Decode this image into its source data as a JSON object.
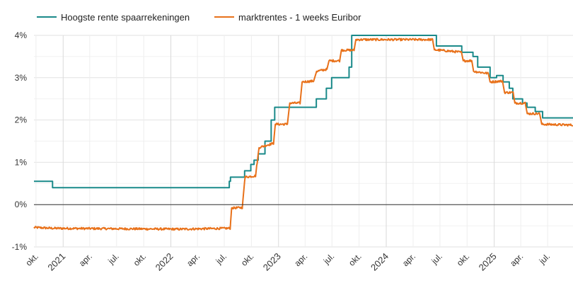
{
  "chart_data": {
    "type": "line",
    "title": "",
    "xlabel": "",
    "ylabel": "",
    "ylim": [
      -1,
      4
    ],
    "y_ticks": [
      -1,
      0,
      1,
      2,
      3,
      4
    ],
    "y_tick_labels": [
      "-1%",
      "0%",
      "1%",
      "2%",
      "3%",
      "4%"
    ],
    "x_range": [
      "2020-09-24",
      "2025-09-25"
    ],
    "x_ticks": [
      {
        "date": "2020-10-01",
        "label": "okt.",
        "year": false
      },
      {
        "date": "2021-01-01",
        "label": "2021",
        "year": true
      },
      {
        "date": "2021-04-01",
        "label": "apr.",
        "year": false
      },
      {
        "date": "2021-07-01",
        "label": "jul.",
        "year": false
      },
      {
        "date": "2021-10-01",
        "label": "okt.",
        "year": false
      },
      {
        "date": "2022-01-01",
        "label": "2022",
        "year": true
      },
      {
        "date": "2022-04-01",
        "label": "apr.",
        "year": false
      },
      {
        "date": "2022-07-01",
        "label": "jul.",
        "year": false
      },
      {
        "date": "2022-10-01",
        "label": "okt.",
        "year": false
      },
      {
        "date": "2023-01-01",
        "label": "2023",
        "year": true
      },
      {
        "date": "2023-04-01",
        "label": "apr.",
        "year": false
      },
      {
        "date": "2023-07-01",
        "label": "jul.",
        "year": false
      },
      {
        "date": "2023-10-01",
        "label": "okt.",
        "year": false
      },
      {
        "date": "2024-01-01",
        "label": "2024",
        "year": true
      },
      {
        "date": "2024-04-01",
        "label": "apr.",
        "year": false
      },
      {
        "date": "2024-07-01",
        "label": "jul.",
        "year": false
      },
      {
        "date": "2024-10-01",
        "label": "okt.",
        "year": false
      },
      {
        "date": "2025-01-01",
        "label": "2025",
        "year": true
      },
      {
        "date": "2025-04-01",
        "label": "apr.",
        "year": false
      },
      {
        "date": "2025-07-01",
        "label": "jul.",
        "year": false
      }
    ],
    "grid": true,
    "zero_line": true,
    "legend_position": "top-left",
    "series": [
      {
        "name": "Hoogste rente spaarrekeningen",
        "color": "#1a8a8a",
        "interpolation": "step",
        "points": [
          [
            "2020-09-24",
            0.55
          ],
          [
            "2020-11-26",
            0.4
          ],
          [
            "2022-07-15",
            0.4
          ],
          [
            "2022-07-18",
            0.55
          ],
          [
            "2022-07-22",
            0.65
          ],
          [
            "2022-09-06",
            0.65
          ],
          [
            "2022-09-08",
            0.8
          ],
          [
            "2022-09-29",
            0.95
          ],
          [
            "2022-10-10",
            1.05
          ],
          [
            "2022-10-24",
            1.2
          ],
          [
            "2022-11-16",
            1.5
          ],
          [
            "2022-12-05",
            1.5
          ],
          [
            "2022-12-07",
            2.0
          ],
          [
            "2022-12-19",
            2.3
          ],
          [
            "2023-05-04",
            2.3
          ],
          [
            "2023-05-09",
            2.5
          ],
          [
            "2023-06-12",
            2.75
          ],
          [
            "2023-06-30",
            3.0
          ],
          [
            "2023-08-25",
            3.0
          ],
          [
            "2023-08-28",
            3.25
          ],
          [
            "2023-09-06",
            4.0
          ],
          [
            "2024-06-15",
            4.0
          ],
          [
            "2024-06-19",
            3.75
          ],
          [
            "2024-09-13",
            3.6
          ],
          [
            "2024-10-21",
            3.5
          ],
          [
            "2024-11-06",
            3.25
          ],
          [
            "2024-12-18",
            3.0
          ],
          [
            "2025-01-09",
            3.05
          ],
          [
            "2025-01-31",
            2.9
          ],
          [
            "2025-02-21",
            2.75
          ],
          [
            "2025-03-05",
            2.5
          ],
          [
            "2025-04-07",
            2.4
          ],
          [
            "2025-04-22",
            2.3
          ],
          [
            "2025-05-20",
            2.2
          ],
          [
            "2025-06-14",
            2.05
          ],
          [
            "2025-09-25",
            2.05
          ]
        ]
      },
      {
        "name": "marktrentes - 1 weeks Euribor",
        "color": "#e8711a",
        "interpolation": "linear",
        "noise_amplitude": 0.025,
        "points": [
          [
            "2020-09-24",
            -0.54
          ],
          [
            "2020-11-30",
            -0.56
          ],
          [
            "2021-06-30",
            -0.57
          ],
          [
            "2022-01-31",
            -0.58
          ],
          [
            "2022-07-15",
            -0.56
          ],
          [
            "2022-07-21",
            -0.56
          ],
          [
            "2022-07-26",
            -0.08
          ],
          [
            "2022-08-31",
            -0.07
          ],
          [
            "2022-09-08",
            0.55
          ],
          [
            "2022-09-10",
            0.65
          ],
          [
            "2022-10-15",
            0.68
          ],
          [
            "2022-10-27",
            1.35
          ],
          [
            "2022-11-20",
            1.4
          ],
          [
            "2022-12-15",
            1.45
          ],
          [
            "2022-12-21",
            1.9
          ],
          [
            "2023-01-31",
            1.9
          ],
          [
            "2023-02-08",
            2.4
          ],
          [
            "2023-03-15",
            2.4
          ],
          [
            "2023-03-22",
            2.9
          ],
          [
            "2023-04-30",
            2.92
          ],
          [
            "2023-05-10",
            3.15
          ],
          [
            "2023-06-14",
            3.2
          ],
          [
            "2023-06-21",
            3.4
          ],
          [
            "2023-07-27",
            3.4
          ],
          [
            "2023-08-02",
            3.65
          ],
          [
            "2023-09-14",
            3.65
          ],
          [
            "2023-09-20",
            3.9
          ],
          [
            "2024-06-06",
            3.9
          ],
          [
            "2024-06-12",
            3.66
          ],
          [
            "2024-07-31",
            3.63
          ],
          [
            "2024-09-12",
            3.6
          ],
          [
            "2024-09-18",
            3.4
          ],
          [
            "2024-10-17",
            3.4
          ],
          [
            "2024-10-23",
            3.15
          ],
          [
            "2024-12-12",
            3.1
          ],
          [
            "2024-12-18",
            2.9
          ],
          [
            "2025-01-29",
            2.92
          ],
          [
            "2025-02-05",
            2.65
          ],
          [
            "2025-03-06",
            2.65
          ],
          [
            "2025-03-12",
            2.4
          ],
          [
            "2025-04-16",
            2.4
          ],
          [
            "2025-04-23",
            2.15
          ],
          [
            "2025-06-04",
            2.15
          ],
          [
            "2025-06-11",
            1.9
          ],
          [
            "2025-09-25",
            1.88
          ]
        ]
      }
    ]
  }
}
